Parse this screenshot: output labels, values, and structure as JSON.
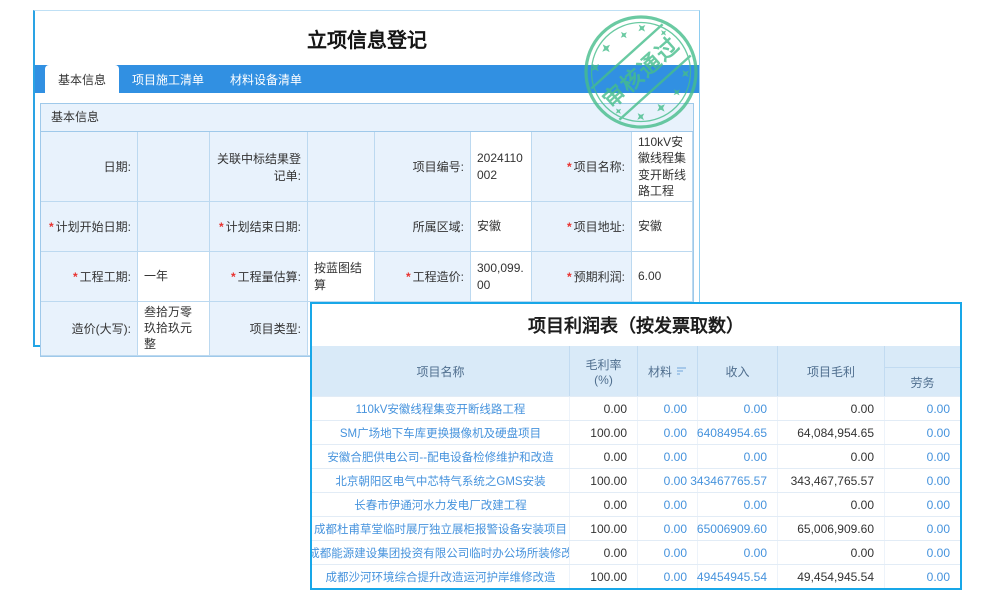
{
  "colors": {
    "tab_blue": "#3190e2",
    "panel_border_blue": "#2aa3e4",
    "bottom_panel_border": "#18a7e8",
    "label_cell_bg": "#e8f2fc",
    "table_header_bg": "#d9eaf8",
    "link_blue": "#4693dd",
    "required_red": "#e8322f",
    "stamp_green": "#46bd8b"
  },
  "stamp": {
    "text": "审核通过"
  },
  "registration": {
    "title": "立项信息登记",
    "tabs": [
      {
        "label": "基本信息",
        "active": true
      },
      {
        "label": "项目施工清单",
        "active": false
      },
      {
        "label": "材料设备清单",
        "active": false
      }
    ],
    "section_title": "基本信息",
    "form": [
      [
        {
          "label": "日期:",
          "required": false,
          "value": "",
          "empty": true
        },
        {
          "label": "关联中标结果登记单:",
          "required": false,
          "value": "",
          "empty": true
        },
        {
          "label": "项目编号:",
          "required": false,
          "value": "2024110002",
          "empty": false
        },
        {
          "label": "项目名称:",
          "required": true,
          "value": "110kV安徽线程集变开断线路工程",
          "empty": false
        }
      ],
      [
        {
          "label": "计划开始日期:",
          "required": true,
          "value": "",
          "empty": true
        },
        {
          "label": "计划结束日期:",
          "required": true,
          "value": "",
          "empty": true
        },
        {
          "label": "所属区域:",
          "required": false,
          "value": "安徽",
          "empty": false
        },
        {
          "label": "项目地址:",
          "required": true,
          "value": "安徽",
          "empty": false
        }
      ],
      [
        {
          "label": "工程工期:",
          "required": true,
          "value": "一年",
          "empty": false
        },
        {
          "label": "工程量估算:",
          "required": true,
          "value": "按蓝图结算",
          "empty": false
        },
        {
          "label": "工程造价:",
          "required": true,
          "value": "300,099.00",
          "empty": false
        },
        {
          "label": "预期利润:",
          "required": true,
          "value": "6.00",
          "empty": false
        }
      ],
      [
        {
          "label": "造价(大写):",
          "required": false,
          "value": "叁拾万零玖拾玖元整",
          "empty": false
        },
        {
          "label": "项目类型:",
          "required": false,
          "value": "",
          "empty": false
        }
      ]
    ]
  },
  "profit": {
    "title": "项目利润表（按发票取数）",
    "columns": [
      "项目名称",
      "毛利率\n(%)",
      "材料",
      "收入",
      "项目毛利",
      "劳务"
    ],
    "rows": [
      {
        "name": "110kV安徽线程集变开断线路工程",
        "rate": "0.00",
        "material": "0.00",
        "income": "0.00",
        "profit": "0.00",
        "labor": "0.00"
      },
      {
        "name": "SM广场地下车库更换摄像机及硬盘项目",
        "rate": "100.00",
        "material": "0.00",
        "income": "64084954.65",
        "profit": "64,084,954.65",
        "labor": "0.00"
      },
      {
        "name": "安徽合肥供电公司--配电设备检修维护和改造",
        "rate": "0.00",
        "material": "0.00",
        "income": "0.00",
        "profit": "0.00",
        "labor": "0.00"
      },
      {
        "name": "北京朝阳区电气中芯特气系统之GMS安装",
        "rate": "100.00",
        "material": "0.00",
        "income": "343467765.57",
        "profit": "343,467,765.57",
        "labor": "0.00"
      },
      {
        "name": "长春市伊通河水力发电厂改建工程",
        "rate": "0.00",
        "material": "0.00",
        "income": "0.00",
        "profit": "0.00",
        "labor": "0.00"
      },
      {
        "name": "成都杜甫草堂临时展厅独立展柜报警设备安装项目",
        "rate": "100.00",
        "material": "0.00",
        "income": "65006909.60",
        "profit": "65,006,909.60",
        "labor": "0.00"
      },
      {
        "name": "成都能源建设集团投资有限公司临时办公场所装修改",
        "rate": "0.00",
        "material": "0.00",
        "income": "0.00",
        "profit": "0.00",
        "labor": "0.00"
      },
      {
        "name": "成都沙河环境综合提升改造运河护岸维修改造",
        "rate": "100.00",
        "material": "0.00",
        "income": "49454945.54",
        "profit": "49,454,945.54",
        "labor": "0.00"
      }
    ]
  }
}
